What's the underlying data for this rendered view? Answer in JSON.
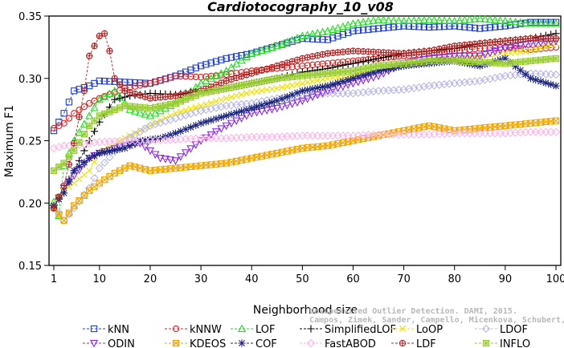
{
  "chart_data": {
    "type": "line",
    "title": "Cardiotocography_10_v08",
    "xlabel": "Neighborhood size",
    "ylabel": "Maximum F1",
    "xlim": [
      1,
      100
    ],
    "ylim": [
      0.15,
      0.35
    ],
    "xticks": [
      "1",
      "10",
      "20",
      "30",
      "40",
      "50",
      "60",
      "70",
      "80",
      "90",
      "100"
    ],
    "xtick_values": [
      1,
      10,
      20,
      30,
      40,
      50,
      60,
      70,
      80,
      90,
      100
    ],
    "yticks": [
      "0.15",
      "0.20",
      "0.25",
      "0.30",
      "0.35"
    ],
    "ytick_values": [
      0.15,
      0.2,
      0.25,
      0.3,
      0.35
    ],
    "grid": false,
    "legend_position": "bottom",
    "credit_lines": [
      "Unsupervised Outlier Detection. DAMI, 2015.",
      "Campos, Zimek, Sander, Campello, Micenkova, Schubert, Assent, Houle"
    ],
    "series": [
      {
        "name": "kNN",
        "color": "#1f3fd0",
        "marker": "square",
        "points": [
          [
            1,
            0.258
          ],
          [
            3,
            0.272
          ],
          [
            5,
            0.29
          ],
          [
            8,
            0.294
          ],
          [
            10,
            0.298
          ],
          [
            15,
            0.297
          ],
          [
            20,
            0.296
          ],
          [
            25,
            0.302
          ],
          [
            30,
            0.31
          ],
          [
            35,
            0.316
          ],
          [
            40,
            0.32
          ],
          [
            45,
            0.326
          ],
          [
            50,
            0.332
          ],
          [
            55,
            0.331
          ],
          [
            60,
            0.338
          ],
          [
            65,
            0.34
          ],
          [
            70,
            0.342
          ],
          [
            75,
            0.341
          ],
          [
            80,
            0.342
          ],
          [
            85,
            0.34
          ],
          [
            90,
            0.342
          ],
          [
            95,
            0.345
          ],
          [
            100,
            0.345
          ]
        ]
      },
      {
        "name": "kNNW",
        "color": "#e02020",
        "marker": "circle",
        "points": [
          [
            1,
            0.26
          ],
          [
            3,
            0.264
          ],
          [
            5,
            0.272
          ],
          [
            8,
            0.28
          ],
          [
            10,
            0.284
          ],
          [
            15,
            0.292
          ],
          [
            20,
            0.296
          ],
          [
            25,
            0.302
          ],
          [
            30,
            0.301
          ],
          [
            35,
            0.303
          ],
          [
            40,
            0.306
          ],
          [
            45,
            0.308
          ],
          [
            50,
            0.31
          ],
          [
            55,
            0.312
          ],
          [
            60,
            0.314
          ],
          [
            65,
            0.316
          ],
          [
            70,
            0.318
          ],
          [
            75,
            0.32
          ],
          [
            80,
            0.322
          ],
          [
            85,
            0.324
          ],
          [
            90,
            0.325
          ],
          [
            95,
            0.323
          ],
          [
            100,
            0.325
          ]
        ]
      },
      {
        "name": "LOF",
        "color": "#22dd22",
        "marker": "triangle-up",
        "points": [
          [
            1,
            0.201
          ],
          [
            2,
            0.19
          ],
          [
            3,
            0.23
          ],
          [
            5,
            0.25
          ],
          [
            8,
            0.27
          ],
          [
            10,
            0.283
          ],
          [
            13,
            0.29
          ],
          [
            16,
            0.275
          ],
          [
            20,
            0.27
          ],
          [
            25,
            0.28
          ],
          [
            30,
            0.296
          ],
          [
            35,
            0.306
          ],
          [
            40,
            0.32
          ],
          [
            45,
            0.326
          ],
          [
            50,
            0.334
          ],
          [
            55,
            0.338
          ],
          [
            60,
            0.344
          ],
          [
            65,
            0.347
          ],
          [
            70,
            0.346
          ],
          [
            75,
            0.347
          ],
          [
            80,
            0.346
          ],
          [
            85,
            0.348
          ],
          [
            90,
            0.346
          ],
          [
            95,
            0.344
          ],
          [
            100,
            0.344
          ]
        ]
      },
      {
        "name": "SimplifiedLOF",
        "color": "#000000",
        "marker": "plus",
        "points": [
          [
            1,
            0.196
          ],
          [
            3,
            0.212
          ],
          [
            5,
            0.226
          ],
          [
            8,
            0.25
          ],
          [
            10,
            0.265
          ],
          [
            13,
            0.283
          ],
          [
            16,
            0.286
          ],
          [
            20,
            0.288
          ],
          [
            25,
            0.287
          ],
          [
            30,
            0.29
          ],
          [
            35,
            0.292
          ],
          [
            40,
            0.296
          ],
          [
            45,
            0.3
          ],
          [
            50,
            0.305
          ],
          [
            55,
            0.308
          ],
          [
            60,
            0.312
          ],
          [
            65,
            0.316
          ],
          [
            70,
            0.32
          ],
          [
            75,
            0.322
          ],
          [
            80,
            0.324
          ],
          [
            85,
            0.328
          ],
          [
            90,
            0.33
          ],
          [
            95,
            0.332
          ],
          [
            100,
            0.336
          ]
        ]
      },
      {
        "name": "LoOP",
        "color": "#f0e000",
        "marker": "cross",
        "points": [
          [
            1,
            0.2
          ],
          [
            3,
            0.21
          ],
          [
            5,
            0.216
          ],
          [
            8,
            0.226
          ],
          [
            10,
            0.24
          ],
          [
            15,
            0.252
          ],
          [
            20,
            0.262
          ],
          [
            25,
            0.272
          ],
          [
            30,
            0.278
          ],
          [
            35,
            0.284
          ],
          [
            40,
            0.289
          ],
          [
            45,
            0.292
          ],
          [
            50,
            0.296
          ],
          [
            55,
            0.3
          ],
          [
            60,
            0.302
          ],
          [
            65,
            0.306
          ],
          [
            70,
            0.31
          ],
          [
            75,
            0.312
          ],
          [
            80,
            0.316
          ],
          [
            85,
            0.318
          ],
          [
            90,
            0.32
          ],
          [
            95,
            0.322
          ],
          [
            100,
            0.328
          ]
        ]
      },
      {
        "name": "LDOF",
        "color": "#b8b8e8",
        "marker": "diamond",
        "points": [
          [
            1,
            0.198
          ],
          [
            3,
            0.186
          ],
          [
            5,
            0.196
          ],
          [
            8,
            0.212
          ],
          [
            10,
            0.228
          ],
          [
            15,
            0.25
          ],
          [
            20,
            0.262
          ],
          [
            25,
            0.268
          ],
          [
            30,
            0.274
          ],
          [
            35,
            0.278
          ],
          [
            40,
            0.28
          ],
          [
            45,
            0.284
          ],
          [
            50,
            0.286
          ],
          [
            55,
            0.288
          ],
          [
            60,
            0.288
          ],
          [
            65,
            0.29
          ],
          [
            70,
            0.291
          ],
          [
            75,
            0.294
          ],
          [
            80,
            0.296
          ],
          [
            85,
            0.298
          ],
          [
            90,
            0.302
          ],
          [
            95,
            0.304
          ],
          [
            100,
            0.303
          ]
        ]
      },
      {
        "name": "ODIN",
        "color": "#8a2be2",
        "marker": "triangle-down",
        "points": [
          [
            1,
            0.196
          ],
          [
            3,
            0.212
          ],
          [
            5,
            0.222
          ],
          [
            8,
            0.236
          ],
          [
            10,
            0.24
          ],
          [
            15,
            0.246
          ],
          [
            18,
            0.248
          ],
          [
            22,
            0.236
          ],
          [
            25,
            0.234
          ],
          [
            30,
            0.25
          ],
          [
            35,
            0.262
          ],
          [
            40,
            0.272
          ],
          [
            45,
            0.276
          ],
          [
            50,
            0.282
          ],
          [
            55,
            0.29
          ],
          [
            60,
            0.296
          ],
          [
            65,
            0.302
          ],
          [
            70,
            0.312
          ],
          [
            75,
            0.316
          ],
          [
            80,
            0.318
          ],
          [
            85,
            0.318
          ],
          [
            90,
            0.324
          ],
          [
            95,
            0.328
          ],
          [
            100,
            0.33
          ]
        ]
      },
      {
        "name": "KDEOS",
        "color": "#f0a500",
        "marker": "square-x",
        "points": [
          [
            1,
            0.196
          ],
          [
            3,
            0.186
          ],
          [
            5,
            0.198
          ],
          [
            8,
            0.21
          ],
          [
            10,
            0.216
          ],
          [
            13,
            0.224
          ],
          [
            16,
            0.23
          ],
          [
            20,
            0.226
          ],
          [
            25,
            0.228
          ],
          [
            30,
            0.23
          ],
          [
            35,
            0.232
          ],
          [
            40,
            0.236
          ],
          [
            45,
            0.24
          ],
          [
            50,
            0.244
          ],
          [
            55,
            0.246
          ],
          [
            60,
            0.25
          ],
          [
            65,
            0.254
          ],
          [
            70,
            0.258
          ],
          [
            75,
            0.262
          ],
          [
            80,
            0.258
          ],
          [
            85,
            0.26
          ],
          [
            90,
            0.262
          ],
          [
            95,
            0.264
          ],
          [
            100,
            0.266
          ]
        ]
      },
      {
        "name": "COF",
        "color": "#1a237e",
        "marker": "asterisk",
        "points": [
          [
            1,
            0.198
          ],
          [
            3,
            0.208
          ],
          [
            5,
            0.226
          ],
          [
            8,
            0.236
          ],
          [
            10,
            0.24
          ],
          [
            15,
            0.244
          ],
          [
            18,
            0.25
          ],
          [
            22,
            0.252
          ],
          [
            25,
            0.256
          ],
          [
            30,
            0.264
          ],
          [
            35,
            0.27
          ],
          [
            40,
            0.276
          ],
          [
            45,
            0.282
          ],
          [
            50,
            0.29
          ],
          [
            55,
            0.294
          ],
          [
            60,
            0.3
          ],
          [
            65,
            0.306
          ],
          [
            70,
            0.31
          ],
          [
            75,
            0.312
          ],
          [
            80,
            0.314
          ],
          [
            85,
            0.31
          ],
          [
            90,
            0.316
          ],
          [
            95,
            0.3
          ],
          [
            100,
            0.294
          ]
        ]
      },
      {
        "name": "FastABOD",
        "color": "#ffb6e6",
        "marker": "diamond",
        "points": [
          [
            1,
            0.244
          ],
          [
            3,
            0.246
          ],
          [
            5,
            0.246
          ],
          [
            8,
            0.248
          ],
          [
            10,
            0.249
          ],
          [
            15,
            0.25
          ],
          [
            20,
            0.25
          ],
          [
            25,
            0.251
          ],
          [
            30,
            0.252
          ],
          [
            35,
            0.252
          ],
          [
            40,
            0.253
          ],
          [
            45,
            0.253
          ],
          [
            50,
            0.254
          ],
          [
            55,
            0.254
          ],
          [
            60,
            0.254
          ],
          [
            65,
            0.255
          ],
          [
            70,
            0.255
          ],
          [
            75,
            0.255
          ],
          [
            80,
            0.256
          ],
          [
            85,
            0.256
          ],
          [
            90,
            0.256
          ],
          [
            95,
            0.257
          ],
          [
            100,
            0.257
          ]
        ]
      },
      {
        "name": "LDF",
        "color": "#b22222",
        "marker": "circle-plus",
        "points": [
          [
            1,
            0.196
          ],
          [
            3,
            0.214
          ],
          [
            5,
            0.248
          ],
          [
            7,
            0.29
          ],
          [
            8,
            0.318
          ],
          [
            9,
            0.326
          ],
          [
            10,
            0.334
          ],
          [
            11,
            0.336
          ],
          [
            12,
            0.322
          ],
          [
            13,
            0.3
          ],
          [
            15,
            0.29
          ],
          [
            20,
            0.284
          ],
          [
            25,
            0.286
          ],
          [
            30,
            0.29
          ],
          [
            35,
            0.298
          ],
          [
            40,
            0.304
          ],
          [
            45,
            0.31
          ],
          [
            50,
            0.316
          ],
          [
            55,
            0.32
          ],
          [
            60,
            0.322
          ],
          [
            65,
            0.321
          ],
          [
            70,
            0.32
          ],
          [
            75,
            0.322
          ],
          [
            80,
            0.326
          ],
          [
            85,
            0.328
          ],
          [
            90,
            0.33
          ],
          [
            95,
            0.332
          ],
          [
            100,
            0.332
          ]
        ]
      },
      {
        "name": "INFLO",
        "color": "#9acd32",
        "marker": "square-star",
        "points": [
          [
            1,
            0.226
          ],
          [
            3,
            0.232
          ],
          [
            5,
            0.242
          ],
          [
            8,
            0.262
          ],
          [
            10,
            0.27
          ],
          [
            15,
            0.278
          ],
          [
            20,
            0.276
          ],
          [
            25,
            0.28
          ],
          [
            30,
            0.288
          ],
          [
            35,
            0.292
          ],
          [
            40,
            0.296
          ],
          [
            45,
            0.3
          ],
          [
            50,
            0.302
          ],
          [
            55,
            0.304
          ],
          [
            60,
            0.306
          ],
          [
            65,
            0.31
          ],
          [
            70,
            0.312
          ],
          [
            75,
            0.314
          ],
          [
            80,
            0.314
          ],
          [
            85,
            0.313
          ],
          [
            90,
            0.312
          ],
          [
            95,
            0.314
          ],
          [
            100,
            0.316
          ]
        ]
      }
    ]
  }
}
